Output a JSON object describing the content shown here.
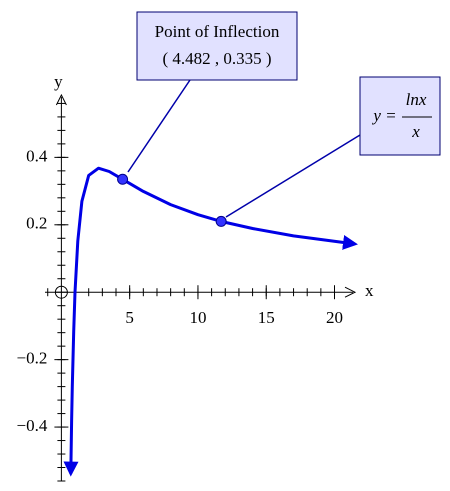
{
  "chart_data": {
    "type": "line",
    "x": [
      0.69,
      0.75,
      0.8,
      0.9,
      1,
      1.2,
      1.5,
      2,
      2.718,
      3.5,
      4.482,
      6,
      8,
      10,
      11.6,
      14,
      17,
      21.5
    ],
    "values": [
      -0.538,
      -0.384,
      -0.279,
      -0.117,
      0,
      0.152,
      0.27,
      0.3466,
      0.368,
      0.358,
      0.335,
      0.299,
      0.26,
      0.23,
      0.211,
      0.189,
      0.167,
      0.143
    ],
    "color": "#0000e6",
    "xlim": [
      -1.2,
      21.5
    ],
    "ylim": [
      -0.56,
      0.585
    ],
    "xticks": [
      5,
      10,
      15,
      20
    ],
    "yticks": [
      {
        "value": -0.4,
        "label": "−0.4"
      },
      {
        "value": -0.2,
        "label": "−0.2"
      },
      0.2,
      0.4
    ],
    "xminor_step": 1,
    "yminor_step": 0.04,
    "xlabel": "x",
    "ylabel": "y",
    "points": [
      {
        "x": 4.482,
        "y": 0.335
      },
      {
        "x": 11.7,
        "y": 0.21
      }
    ],
    "annotations": [
      {
        "lines": [
          "Point of Inflection",
          "( 4.482 , 0.335 )"
        ]
      },
      {
        "lhs": "y =",
        "numerator": "lnx",
        "denominator": "x"
      }
    ]
  }
}
